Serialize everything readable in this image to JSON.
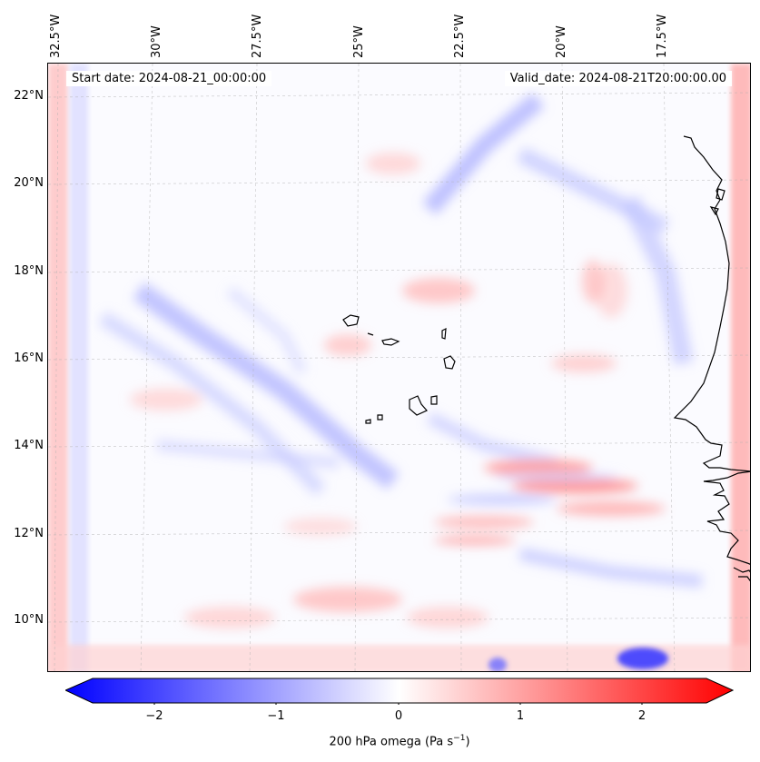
{
  "info": {
    "start_date": "Start date: 2024-08-21_00:00:00",
    "valid_date": "Valid_date: 2024-08-21T20:00:00.00"
  },
  "longitude_labels": [
    "32.5°W",
    "30°W",
    "27.5°W",
    "25°W",
    "22.5°W",
    "20°W",
    "17.5°W"
  ],
  "latitude_labels": [
    "22°N",
    "20°N",
    "18°N",
    "16°N",
    "14°N",
    "12°N",
    "10°N"
  ],
  "colorbar": {
    "ticks": [
      "−2",
      "−1",
      "0",
      "1",
      "2"
    ],
    "label": "200 hPa omega (Pa s",
    "unit_exponent": "−1",
    "label_close": ")",
    "min_color": "#0000ff",
    "mid_color": "#ffffff",
    "max_color": "#ff0000"
  },
  "map": {
    "coastline_color": "#000000",
    "gridline_color": "#b0b0b0",
    "islands": "Cabo Verde"
  }
}
